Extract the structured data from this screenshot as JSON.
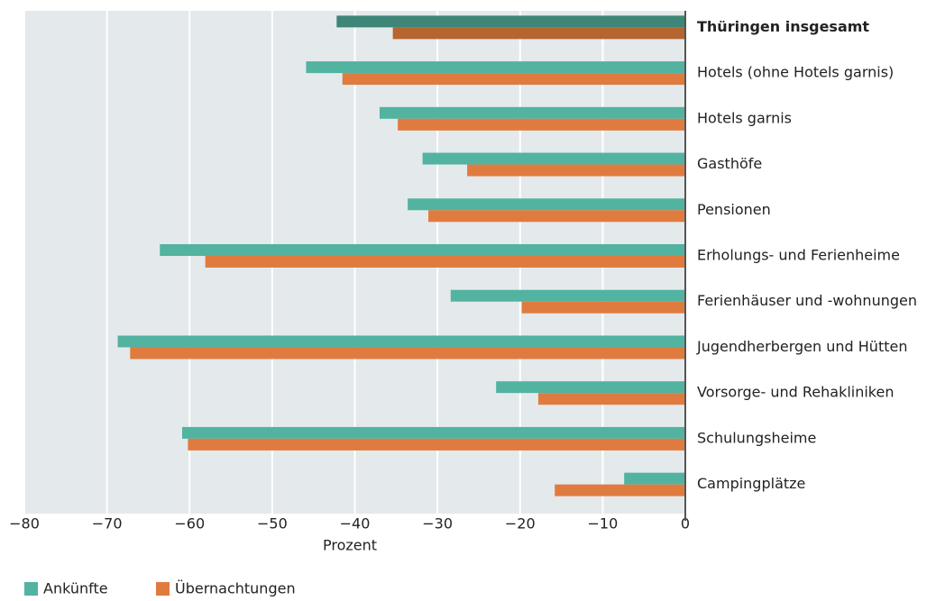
{
  "chart_data": {
    "type": "bar",
    "orientation": "horizontal",
    "categories": [
      "Thüringen insgesamt",
      "Hotels (ohne Hotels garnis)",
      "Hotels garnis",
      "Gasthöfe",
      "Pensionen",
      "Erholungs- und Ferienheime",
      "Ferienhäuser und -wohnungen",
      "Jugendherbergen und Hütten",
      "Vorsorge- und Rehakliniken",
      "Schulungsheime",
      "Campingplätze"
    ],
    "series": [
      {
        "name": "Ankünfte",
        "color": "#52b3a0",
        "highlight_color": "#3e8677",
        "values": [
          -42.2,
          -45.9,
          -37.0,
          -31.8,
          -33.6,
          -63.6,
          -28.4,
          -68.7,
          -22.9,
          -60.9,
          -7.4
        ]
      },
      {
        "name": "Übernachtungen",
        "color": "#e07b3f",
        "highlight_color": "#b5652f",
        "values": [
          -35.4,
          -41.5,
          -34.8,
          -26.4,
          -31.1,
          -58.1,
          -19.8,
          -67.2,
          -17.8,
          -60.2,
          -15.8
        ]
      }
    ],
    "highlight_index": 0,
    "xlabel": "Prozent",
    "xlim": [
      -80,
      0
    ],
    "xticks": [
      {
        "value": -80,
        "label": "−80"
      },
      {
        "value": -70,
        "label": "−70"
      },
      {
        "value": -60,
        "label": "−60"
      },
      {
        "value": -50,
        "label": "−50"
      },
      {
        "value": -40,
        "label": "−40"
      },
      {
        "value": -30,
        "label": "−30"
      },
      {
        "value": -20,
        "label": "−20"
      },
      {
        "value": -10,
        "label": "−10"
      },
      0
    ],
    "grid": true,
    "legend": "bottom-left"
  }
}
